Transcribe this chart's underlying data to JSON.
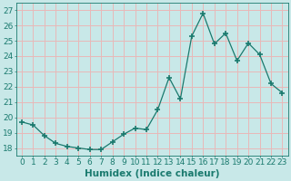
{
  "x": [
    0,
    1,
    2,
    3,
    4,
    5,
    6,
    7,
    8,
    9,
    10,
    11,
    12,
    13,
    14,
    15,
    16,
    17,
    18,
    19,
    20,
    21,
    22,
    23
  ],
  "y": [
    19.7,
    19.5,
    18.8,
    18.3,
    18.1,
    18.0,
    17.9,
    17.9,
    18.4,
    18.9,
    19.3,
    19.2,
    20.5,
    22.6,
    21.2,
    25.3,
    26.8,
    24.8,
    25.5,
    23.7,
    24.85,
    24.1,
    22.2,
    21.6
  ],
  "line_color": "#1a7a6e",
  "marker_color": "#1a7a6e",
  "bg_color": "#c8e8e8",
  "grid_color": "#e8b8b8",
  "xlabel": "Humidex (Indice chaleur)",
  "ylabel_ticks": [
    18,
    19,
    20,
    21,
    22,
    23,
    24,
    25,
    26,
    27
  ],
  "ylim": [
    17.5,
    27.5
  ],
  "xlim": [
    -0.5,
    23.5
  ],
  "xlabel_color": "#1a7a6e",
  "tick_color": "#1a7a6e",
  "axis_label_fontsize": 7.5,
  "tick_fontsize": 6.5
}
